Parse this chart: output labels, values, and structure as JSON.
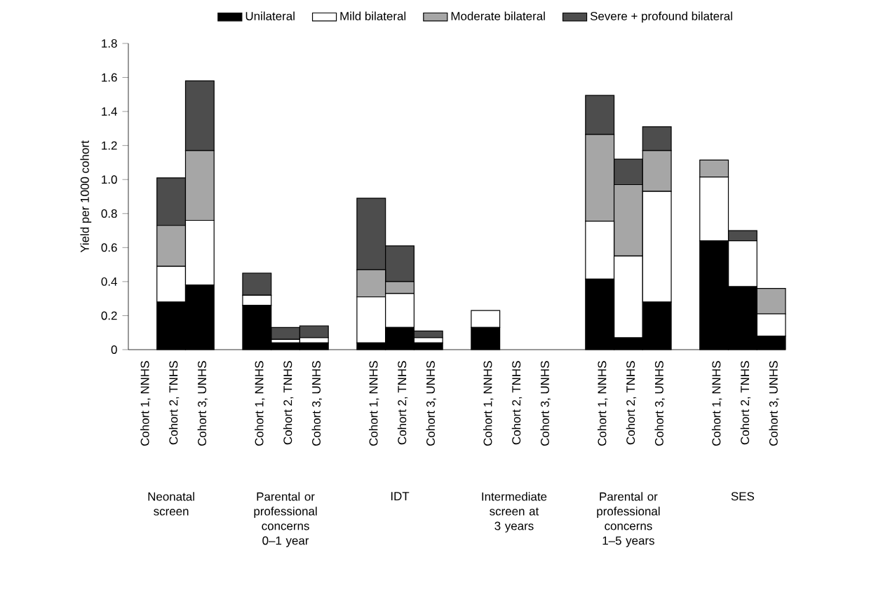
{
  "chart_data": {
    "type": "bar",
    "stacked": true,
    "legend": "top",
    "ylabel": "Yield per 1000 cohort",
    "categories": [
      "Cohort 1, NNHS",
      "Cohort 2, TNHS",
      "Cohort 3, UNHS",
      "Cohort 1, NNHS",
      "Cohort 2, TNHS",
      "Cohort 3, UNHS",
      "Cohort 1, NNHS",
      "Cohort 2, TNHS",
      "Cohort 3, UNHS",
      "Cohort 1, NNHS",
      "Cohort 2, TNHS",
      "Cohort 3, UNHS",
      "Cohort 1, NNHS",
      "Cohort 2, TNHS",
      "Cohort 3, UNHS",
      "Cohort 1, NNHS",
      "Cohort 2, TNHS",
      "Cohort 3, UNHS"
    ],
    "series": [
      {
        "name": "Unilateral",
        "color": "#000000",
        "values": [
          0,
          0.28,
          0.38,
          0.26,
          0.04,
          0.04,
          0.04,
          0.13,
          0.04,
          0.13,
          0,
          0,
          0.415,
          0.07,
          0.28,
          0.64,
          0.37,
          0.08
        ]
      },
      {
        "name": "Mild bilateral",
        "color": "#ffffff",
        "values": [
          0,
          0.21,
          0.38,
          0.06,
          0.02,
          0.03,
          0.27,
          0.2,
          0.03,
          0.1,
          0,
          0,
          0.34,
          0.48,
          0.65,
          0.375,
          0.27,
          0.13
        ]
      },
      {
        "name": "Moderate bilateral",
        "color": "#a6a6a6",
        "values": [
          0,
          0.24,
          0.41,
          0,
          0,
          0,
          0.16,
          0.07,
          0,
          0,
          0,
          0,
          0.51,
          0.42,
          0.24,
          0.1,
          0,
          0.15
        ]
      },
      {
        "name": "Severe + profound bilateral",
        "color": "#4d4d4d",
        "values": [
          0,
          0.28,
          0.41,
          0.13,
          0.07,
          0.07,
          0.42,
          0.21,
          0.04,
          0,
          0,
          0,
          0.23,
          0.15,
          0.14,
          0,
          0.06,
          0
        ]
      }
    ],
    "ylim": [
      0,
      1.8
    ],
    "yticks": [
      0,
      0.2,
      0.4,
      0.6,
      0.8,
      {
        "value": 1,
        "label": "1.0"
      },
      1.2,
      1.4,
      1.6,
      1.8
    ],
    "annotations": [
      "Neonatal screen",
      "Parental or professional concerns 0–1 year",
      "IDT",
      "Intermediate screen at 3 years",
      "Parental or professional concerns 1–5 years",
      "SES"
    ]
  }
}
